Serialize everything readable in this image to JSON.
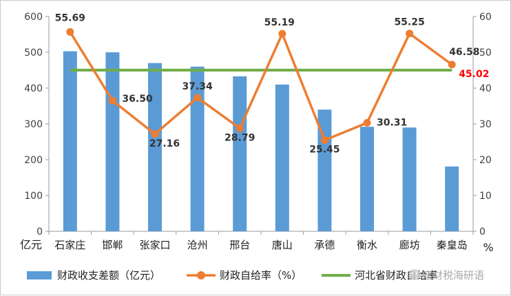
{
  "chart_data": {
    "type": "bar",
    "categories": [
      "石家庄",
      "邯郸",
      "张家口",
      "沧州",
      "邢台",
      "唐山",
      "承德",
      "衡水",
      "廊坊",
      "秦皇岛"
    ],
    "series": [
      {
        "name": "财政收支差额（亿元）",
        "type": "bar",
        "axis": "left",
        "color": "#5b9bd5",
        "values": [
          503,
          500,
          470,
          460,
          433,
          410,
          340,
          292,
          290,
          181
        ]
      },
      {
        "name": "财政自给率（%）",
        "type": "line",
        "axis": "right",
        "color": "#ed7d31",
        "values": [
          55.69,
          36.5,
          27.16,
          37.34,
          28.79,
          55.19,
          25.45,
          30.31,
          55.25,
          46.58
        ],
        "labels": [
          "55.69",
          "36.50",
          "27.16",
          "37.34",
          "28.79",
          "55.19",
          "25.45",
          "30.31",
          "55.25",
          "46.58"
        ]
      },
      {
        "name": "河北省财政自给率",
        "type": "line",
        "axis": "right",
        "color": "#70ad47",
        "values": [
          45.02,
          45.02,
          45.02,
          45.02,
          45.02,
          45.02,
          45.02,
          45.02,
          45.02,
          45.02
        ],
        "end_label": "45.02",
        "end_label_color": "#ff0000"
      }
    ],
    "y_left": {
      "min": 0,
      "max": 600,
      "step": 100,
      "unit": "亿元"
    },
    "y_right": {
      "min": 0,
      "max": 60,
      "step": 10,
      "unit": "%"
    },
    "grid": false,
    "legend_position": "bottom"
  },
  "watermark": "宏财税海研语"
}
